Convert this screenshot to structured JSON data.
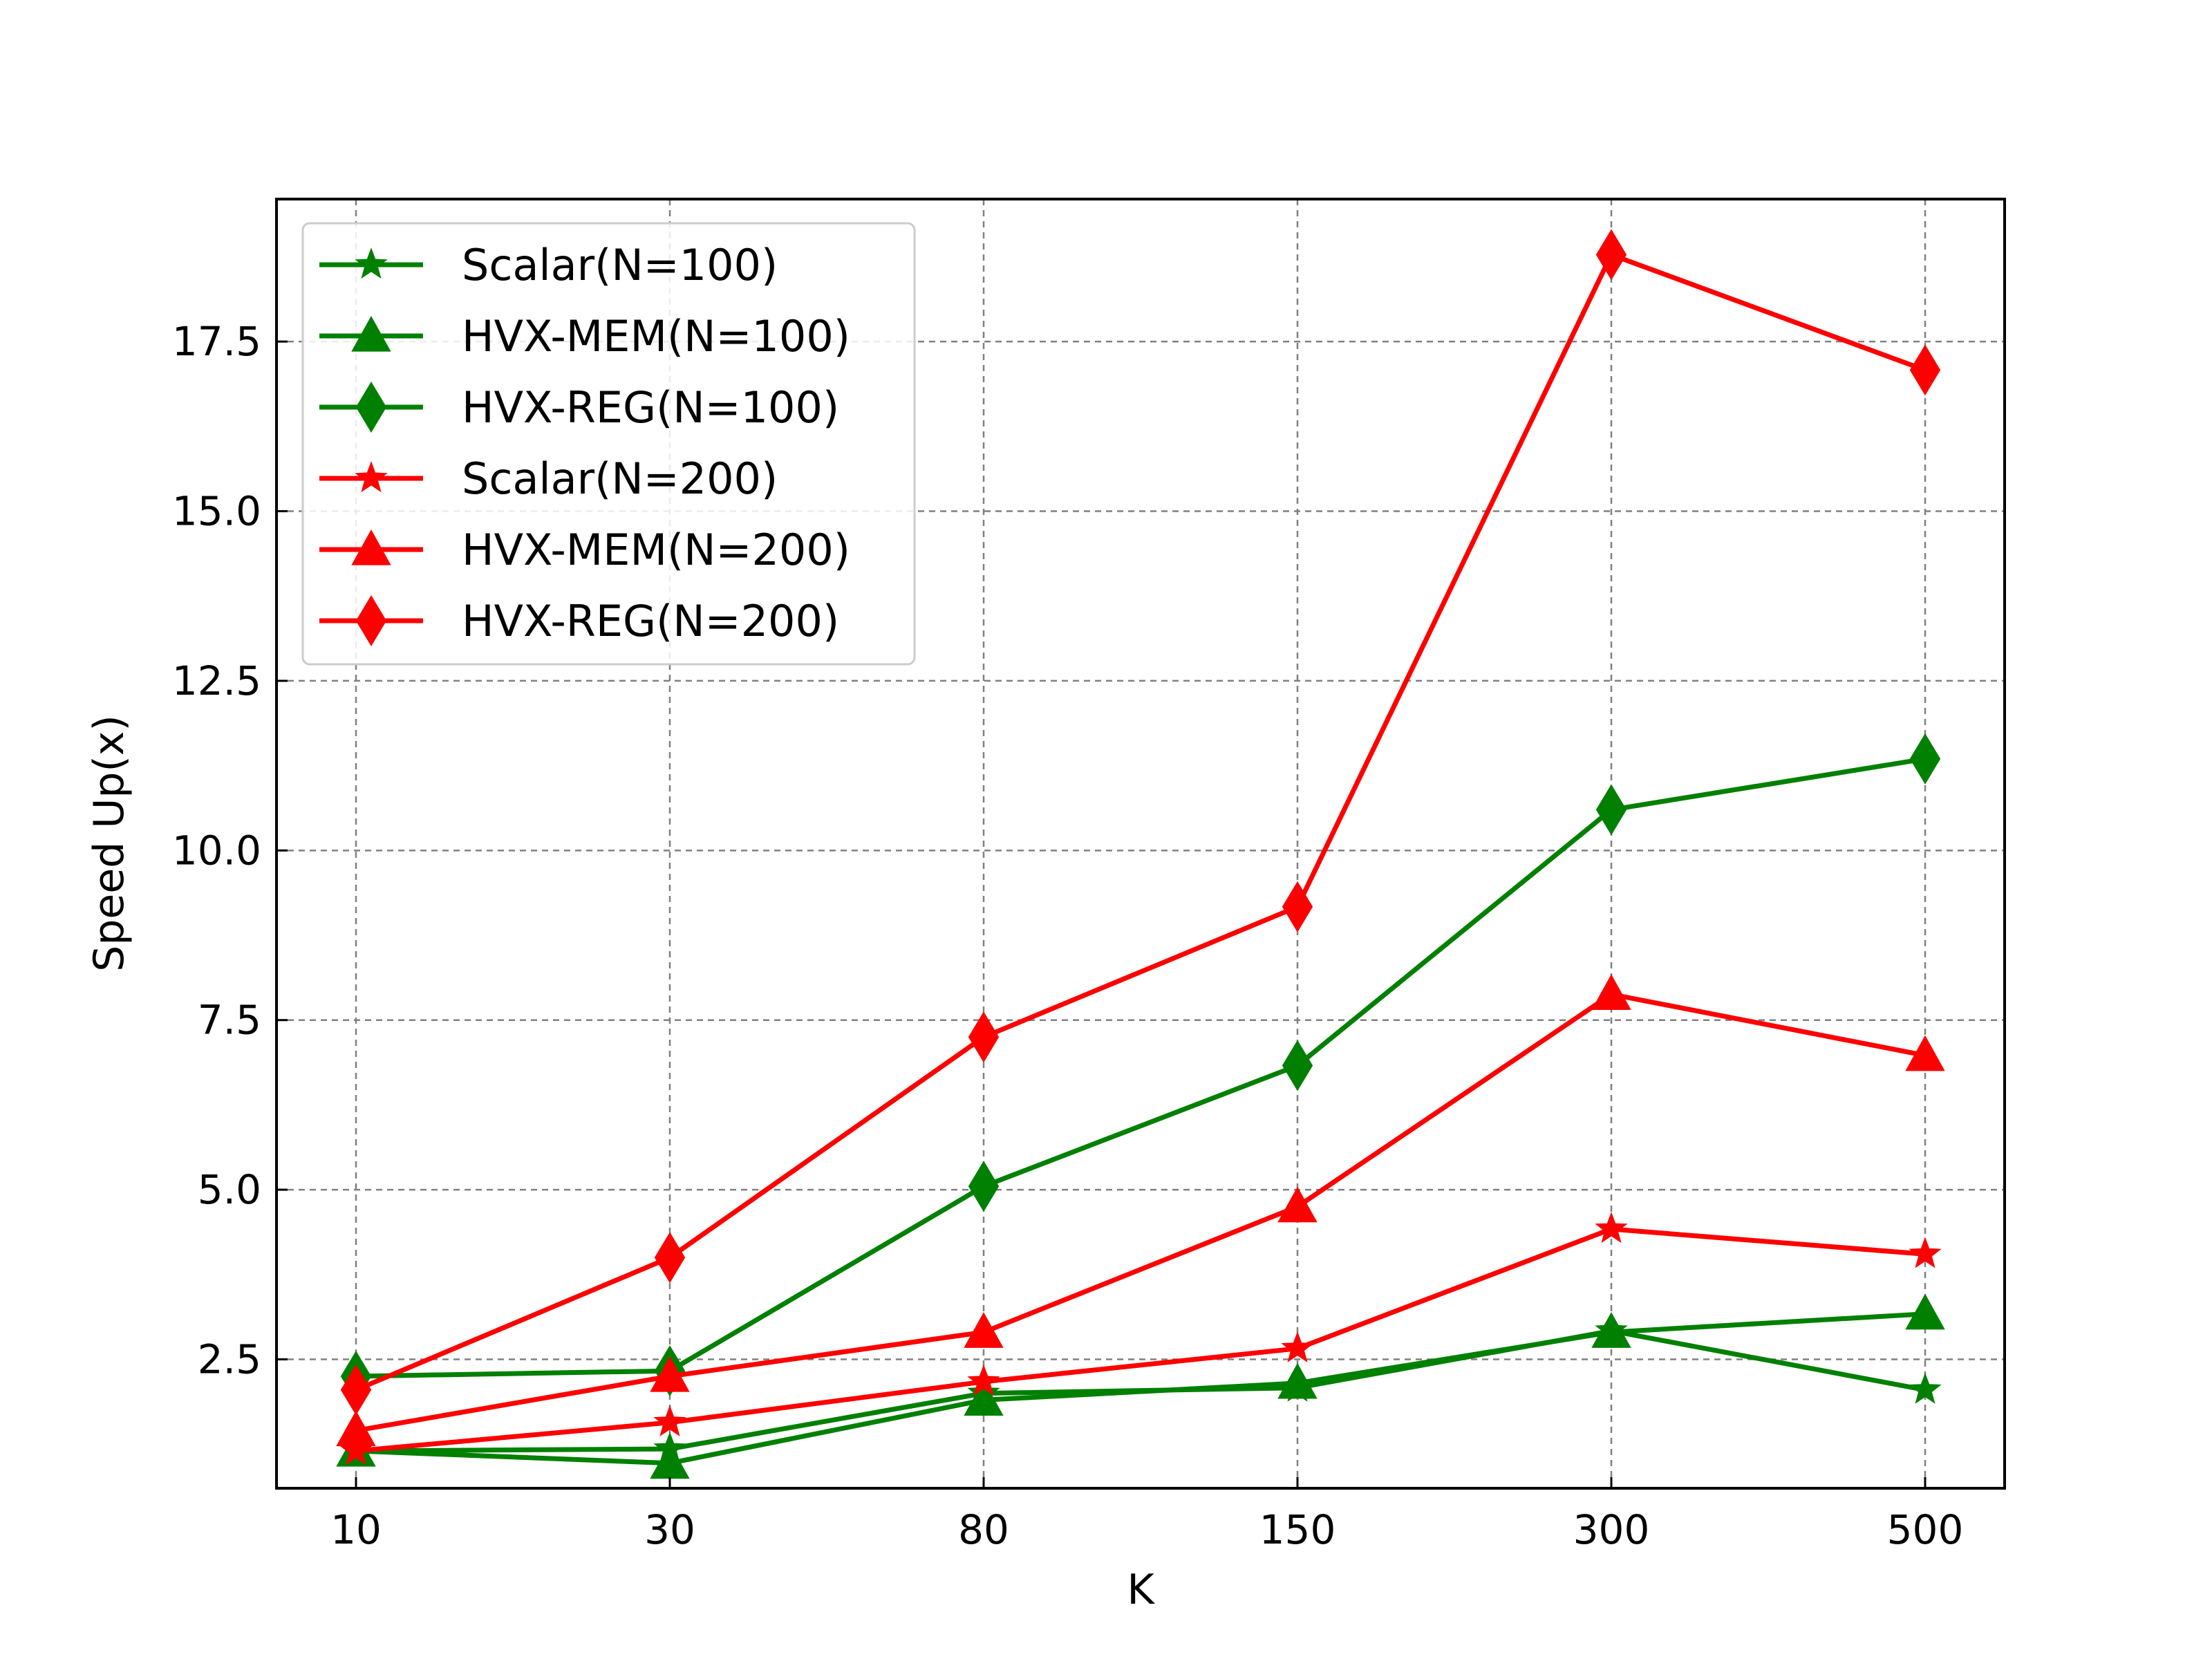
{
  "chart_data": {
    "type": "line",
    "title": "",
    "xlabel": "K",
    "ylabel": "Speed Up(x)",
    "categories": [
      "10",
      "30",
      "80",
      "150",
      "300",
      "500"
    ],
    "ylim": [
      0.6,
      19.6
    ],
    "yticks": [
      "2.5",
      "5.0",
      "7.5",
      "10.0",
      "12.5",
      "15.0",
      "17.5"
    ],
    "grid": true,
    "legend_position": "top-left",
    "series": [
      {
        "name": "Scalar(N=100)",
        "color": "#008000",
        "marker": "star",
        "values": [
          1.15,
          1.18,
          2.0,
          2.08,
          2.92,
          2.05
        ]
      },
      {
        "name": "HVX-MEM(N=100)",
        "color": "#008000",
        "marker": "triangle",
        "values": [
          1.15,
          0.97,
          1.9,
          2.15,
          2.9,
          3.17
        ]
      },
      {
        "name": "HVX-REG(N=100)",
        "color": "#008000",
        "marker": "diamond",
        "values": [
          2.25,
          2.33,
          5.05,
          6.83,
          10.6,
          11.35
        ]
      },
      {
        "name": "Scalar(N=200)",
        "color": "#ff0000",
        "marker": "star",
        "values": [
          1.15,
          1.57,
          2.17,
          2.66,
          4.42,
          4.05
        ]
      },
      {
        "name": "HVX-MEM(N=200)",
        "color": "#ff0000",
        "marker": "triangle",
        "values": [
          1.45,
          2.25,
          2.9,
          4.75,
          7.88,
          6.98
        ]
      },
      {
        "name": "HVX-REG(N=200)",
        "color": "#ff0000",
        "marker": "diamond",
        "values": [
          2.05,
          4.0,
          7.25,
          9.17,
          18.78,
          17.08
        ]
      }
    ]
  }
}
